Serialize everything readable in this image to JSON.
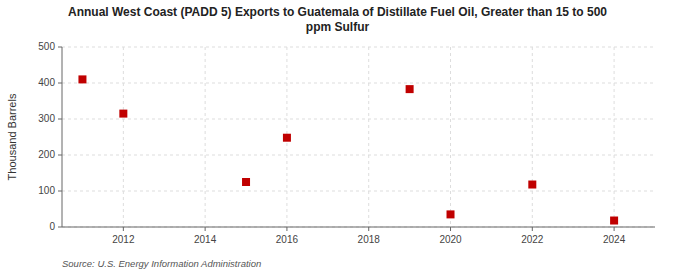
{
  "chart_data": {
    "type": "scatter",
    "title": "Annual West Coast (PADD 5) Exports to Guatemala of Distillate Fuel Oil, Greater than 15 to 500\nppm Sulfur",
    "ylabel": "Thousand Barrels",
    "source": "Source: U.S. Energy Information Administration",
    "x": [
      2011,
      2012,
      2015,
      2016,
      2019,
      2020,
      2022,
      2024
    ],
    "values": [
      410,
      315,
      125,
      248,
      383,
      35,
      118,
      18
    ],
    "xlim": [
      2010.5,
      2025
    ],
    "ylim": [
      0,
      500
    ],
    "xticks": [
      2012,
      2014,
      2016,
      2018,
      2020,
      2022,
      2024
    ],
    "yticks": [
      0,
      100,
      200,
      300,
      400,
      500
    ],
    "color": "#c00000",
    "marker": "square",
    "grid": true
  }
}
